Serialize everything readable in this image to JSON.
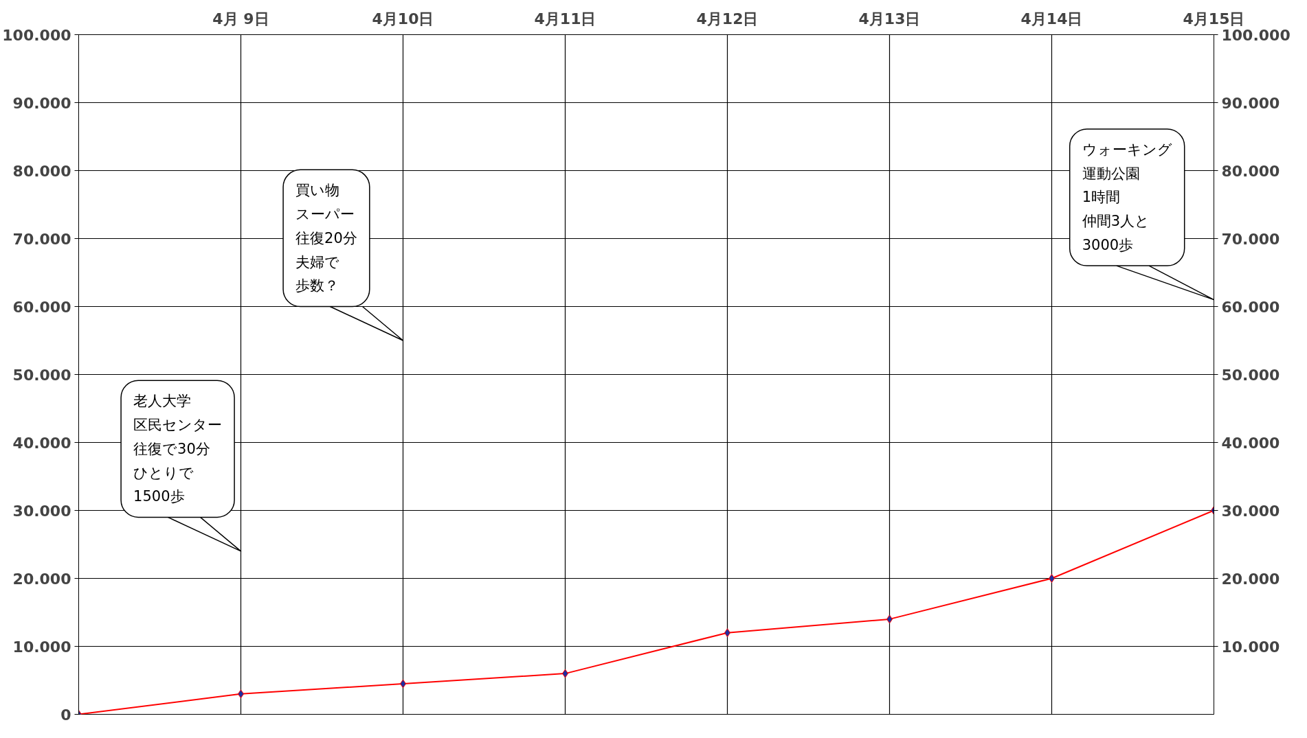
{
  "chart_data": {
    "type": "line",
    "categories": [
      null,
      "4月 9日",
      "4月10日",
      "4月11日",
      "4月12日",
      "4月13日",
      "4月14日",
      "4月15日"
    ],
    "series": [
      {
        "color": "#ff0000",
        "values": [
          0,
          3000,
          4500,
          6000,
          12000,
          14000,
          20000,
          30000
        ]
      }
    ],
    "ylim": [
      0,
      100000
    ],
    "yticks": [
      0,
      {
        "value": 10000,
        "label": "10.000"
      },
      {
        "value": 20000,
        "label": "20.000"
      },
      {
        "value": 30000,
        "label": "30.000"
      },
      {
        "value": 40000,
        "label": "40.000"
      },
      {
        "value": 50000,
        "label": "50.000"
      },
      {
        "value": 60000,
        "label": "60.000"
      },
      {
        "value": 70000,
        "label": "70.000"
      },
      {
        "value": 80000,
        "label": "80.000"
      },
      {
        "value": 90000,
        "label": "90.000"
      },
      {
        "value": 100000,
        "label": "100.000"
      }
    ],
    "y2lim": [
      0,
      100000
    ],
    "y2ticks": [
      {
        "value": 10000,
        "label": "10.000"
      },
      {
        "value": 20000,
        "label": "20.000"
      },
      {
        "value": 30000,
        "label": "30.000"
      },
      {
        "value": 40000,
        "label": "40.000"
      },
      {
        "value": 50000,
        "label": "50.000"
      },
      {
        "value": 60000,
        "label": "60.000"
      },
      {
        "value": 70000,
        "label": "70.000"
      },
      {
        "value": 80000,
        "label": "80.000"
      },
      {
        "value": 90000,
        "label": "90.000"
      },
      {
        "value": 100000,
        "label": "100.000"
      }
    ],
    "grid": true,
    "marker": "diamond",
    "line_style": "solid",
    "annotations": [
      "老人大学",
      "区民センター",
      "往復で30分",
      "ひとりで",
      "1500歩",
      "買い物",
      "スーパー",
      "往復20分",
      "夫婦で",
      "歩数？",
      "ウォーキング",
      "運動公園",
      "1時間",
      "仲間3人と",
      "3000歩"
    ]
  }
}
